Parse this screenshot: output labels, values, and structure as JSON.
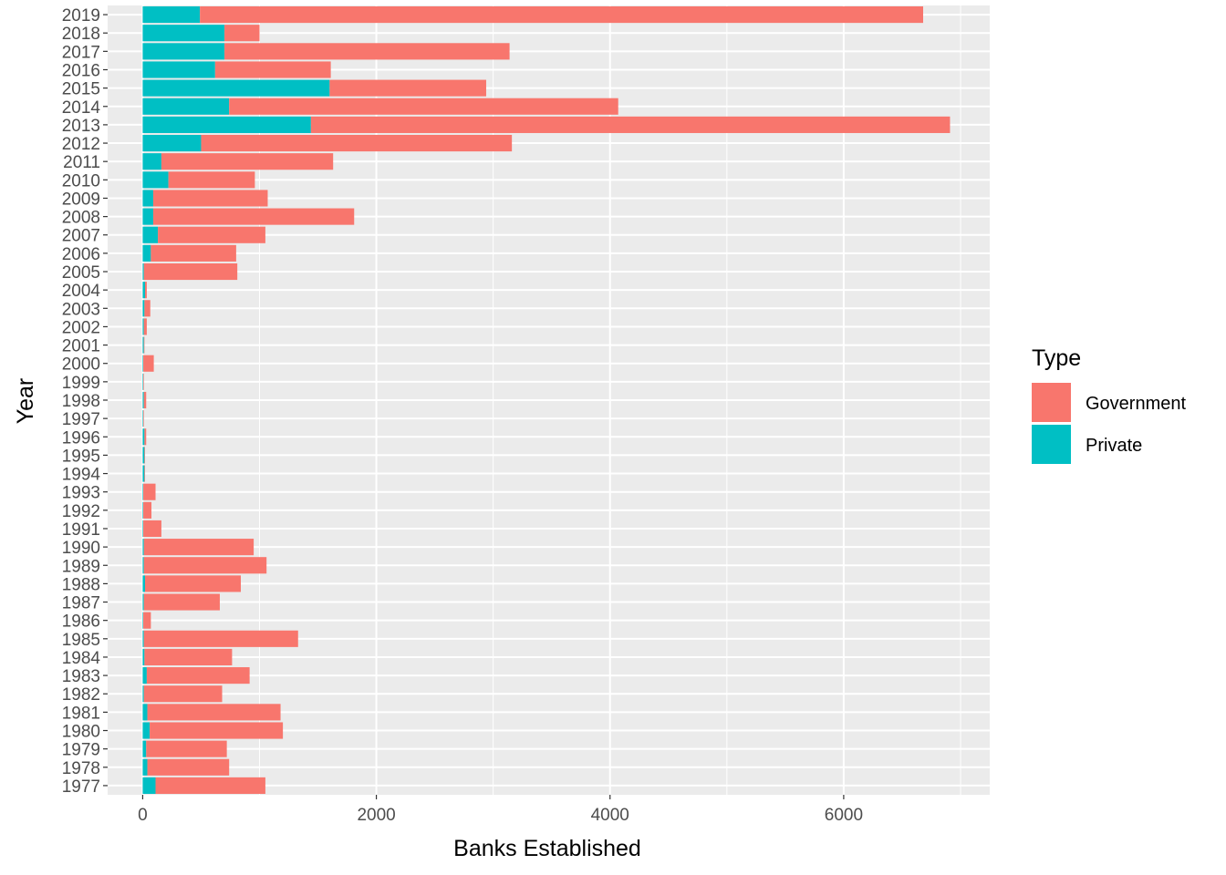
{
  "chart_data": {
    "type": "bar",
    "orientation": "horizontal",
    "stacked": true,
    "title": "",
    "xlabel": "Banks Established",
    "ylabel": "Year",
    "xlim": [
      -300,
      7250
    ],
    "x_ticks": [
      0,
      2000,
      4000,
      6000
    ],
    "grid": true,
    "legend": {
      "title": "Type",
      "position": "right"
    },
    "categories": [
      "1977",
      "1978",
      "1979",
      "1980",
      "1981",
      "1982",
      "1983",
      "1984",
      "1985",
      "1986",
      "1987",
      "1988",
      "1989",
      "1990",
      "1991",
      "1992",
      "1993",
      "1994",
      "1995",
      "1996",
      "1997",
      "1998",
      "1999",
      "2000",
      "2001",
      "2002",
      "2003",
      "2004",
      "2005",
      "2006",
      "2007",
      "2008",
      "2009",
      "2010",
      "2011",
      "2012",
      "2013",
      "2014",
      "2015",
      "2016",
      "2017",
      "2018",
      "2019"
    ],
    "series": [
      {
        "name": "Private",
        "color": "#00BFC4",
        "values": [
          110,
          40,
          30,
          60,
          40,
          10,
          35,
          15,
          10,
          5,
          10,
          20,
          10,
          10,
          5,
          5,
          5,
          15,
          15,
          15,
          5,
          10,
          5,
          5,
          10,
          10,
          15,
          20,
          10,
          70,
          130,
          90,
          90,
          220,
          160,
          500,
          1440,
          740,
          1600,
          620,
          700,
          700,
          490
        ]
      },
      {
        "name": "Government",
        "color": "#F8766D",
        "values": [
          940,
          700,
          690,
          1140,
          1140,
          670,
          880,
          750,
          1320,
          65,
          650,
          820,
          1050,
          940,
          155,
          70,
          105,
          5,
          5,
          15,
          5,
          20,
          5,
          90,
          5,
          25,
          50,
          15,
          800,
          730,
          920,
          1720,
          980,
          740,
          1470,
          2660,
          5470,
          3330,
          1340,
          990,
          2440,
          300,
          6190
        ]
      }
    ]
  }
}
